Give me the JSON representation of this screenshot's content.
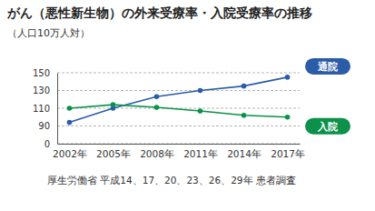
{
  "chart_data": {
    "type": "line",
    "title": "がん（悪性新生物）の外来受療率・入院受療率の推移",
    "subtitle": "（人口10万人対）",
    "source": "厚生労働省 平成14、17、20、23、26、29年 患者調査",
    "categories": [
      "2002年",
      "2005年",
      "2008年",
      "2011年",
      "2014年",
      "2017年"
    ],
    "series": [
      {
        "name": "通院",
        "color": "#2b5ca8",
        "marker": "circle",
        "values": [
          94,
          110,
          123,
          130,
          135,
          145
        ]
      },
      {
        "name": "入院",
        "color": "#0b9149",
        "marker": "circle",
        "values": [
          110,
          114,
          111,
          107,
          102,
          100
        ]
      }
    ],
    "ylim": [
      0,
      150
    ],
    "yticks": [
      0,
      90,
      110,
      130,
      150
    ],
    "grid": true,
    "legend": "right"
  }
}
